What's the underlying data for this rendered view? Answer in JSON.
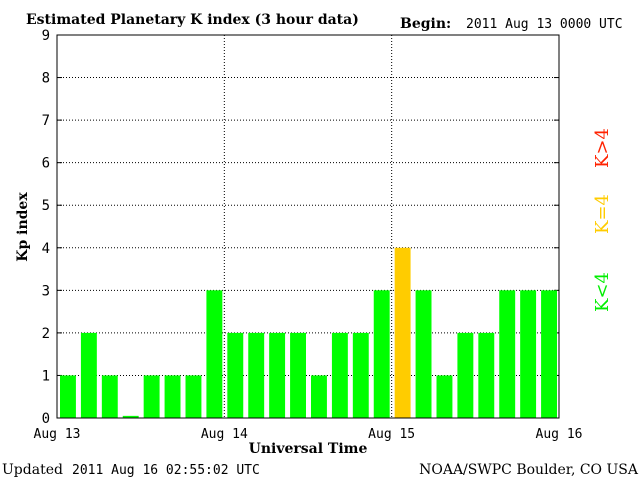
{
  "header": {
    "title": "Estimated Planetary K index (3 hour data)",
    "begin_label": "Begin:",
    "begin_value": "2011 Aug 13 0000 UTC"
  },
  "footer": {
    "updated_label": "Updated",
    "updated_value": "2011 Aug 16 02:55:02 UTC",
    "source": "NOAA/SWPC Boulder, CO USA"
  },
  "legend": {
    "low": "K<4",
    "mid": "K=4",
    "high": "K>4"
  },
  "colors": {
    "low": "#00ff00",
    "mid": "#ffcc00",
    "high": "#ff2200",
    "grid": "#000000"
  },
  "chart_data": {
    "type": "bar",
    "title": "Estimated Planetary K index (3 hour data)",
    "xlabel": "Universal Time",
    "ylabel": "Kp index",
    "ylim": [
      0,
      9
    ],
    "yticks": [
      0,
      1,
      2,
      3,
      4,
      5,
      6,
      7,
      8,
      9
    ],
    "xtick_labels": [
      "Aug 13",
      "Aug 14",
      "Aug 15",
      "Aug 16"
    ],
    "bar_interval_hours": 3,
    "values": [
      1,
      2,
      1,
      0.05,
      1,
      1,
      1,
      3,
      2,
      2,
      2,
      2,
      1,
      2,
      2,
      3,
      4,
      3,
      1,
      2,
      2,
      3,
      3,
      3
    ],
    "color_rule": "green if K<4, yellow if K=4, red if K>4",
    "grid": "dotted"
  }
}
